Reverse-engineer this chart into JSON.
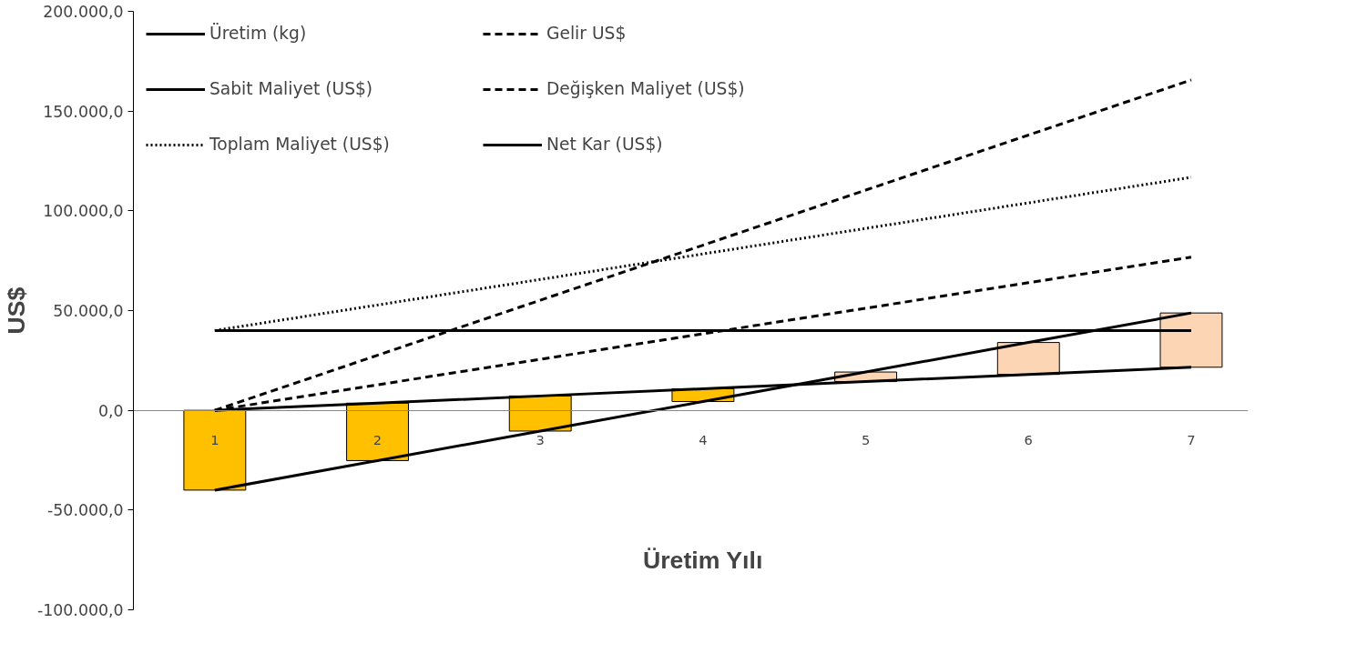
{
  "chart_data": {
    "type": "line",
    "xlabel": "Üretim Yılı",
    "ylabel": "US$",
    "categories": [
      "1",
      "2",
      "3",
      "4",
      "5",
      "6",
      "7"
    ],
    "series": [
      {
        "type": "bar",
        "base": [
          0,
          3600,
          7200,
          10800,
          14400,
          18000,
          21600
        ],
        "values": [
          -40000,
          -28800,
          -17600,
          -6400,
          4800,
          16000,
          27200
        ],
        "colors": [
          "#ffc000",
          "#ffc000",
          "#ffc000",
          "#ffc000",
          "#fcd5b5",
          "#fcd5b5",
          "#fcd5b5"
        ]
      },
      {
        "name": "Üretim (kg)",
        "color": "#000000",
        "line_style": "solid",
        "values": [
          0,
          3600,
          7200,
          10800,
          14400,
          18000,
          21600
        ]
      },
      {
        "name": "Gelir US$",
        "color": "#000000",
        "line_style": "dashed",
        "values": [
          0,
          27600,
          55200,
          82800,
          110400,
          138000,
          165600
        ]
      },
      {
        "name": "Sabit Maliyet (US$)",
        "color": "#000000",
        "line_style": "solid",
        "values": [
          40000,
          40000,
          40000,
          40000,
          40000,
          40000,
          40000
        ]
      },
      {
        "name": "Değişken Maliyet (US$)",
        "color": "#000000",
        "line_style": "dashed",
        "values": [
          0,
          12800,
          25600,
          38400,
          51200,
          64000,
          76800
        ]
      },
      {
        "name": "Toplam Maliyet (US$)",
        "color": "#000000",
        "line_style": "dotted",
        "values": [
          40000,
          52800,
          65600,
          78400,
          91200,
          104000,
          116800
        ]
      },
      {
        "name": "Net Kar (US$)",
        "color": "#000000",
        "line_style": "solid",
        "values": [
          -40000,
          -25200,
          -10400,
          4400,
          19200,
          34000,
          48800
        ]
      }
    ],
    "ylim": [
      -100000,
      200000
    ],
    "yticks": [
      {
        "value": -100000,
        "label": "-100.000,0"
      },
      {
        "value": -50000,
        "label": "-50.000,0"
      },
      {
        "value": 0,
        "label": "0,0"
      },
      {
        "value": 50000,
        "label": "50.000,0"
      },
      {
        "value": 100000,
        "label": "100.000,0"
      },
      {
        "value": 150000,
        "label": "150.000,0"
      },
      {
        "value": 200000,
        "label": "200.000,0"
      }
    ],
    "grid": false,
    "legend": "top left"
  }
}
